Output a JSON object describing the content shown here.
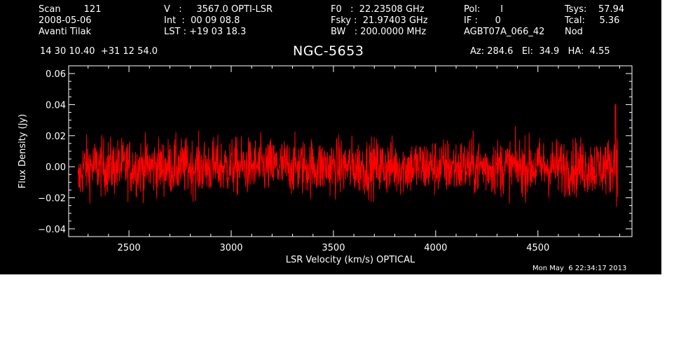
{
  "header": {
    "col1": [
      "Scan        121",
      "2008-05-06",
      "Avanti Tilak"
    ],
    "col2": [
      "V   :     3567.0 OPTI-LSR",
      "Int  :  00 09 08.8",
      "LST : +19 03 18.3"
    ],
    "col3": [
      "F0   :  22.23508 GHz",
      "Fsky :  21.97403 GHz",
      "BW   : 200.0000 MHz"
    ],
    "col4": [
      "Pol:       I",
      "IF :      0",
      "AGBT07A_066_42"
    ],
    "col5": [
      "Tsys:    57.94",
      "Tcal:     5.36",
      "Nod"
    ],
    "coords": "14 30 10.40  +31 12 54.0",
    "source": "NGC-5653",
    "azel": "Az: 284.6   El:  34.9   HA:  4.55"
  },
  "timestamp": "Mon May  6 22:34:17 2013",
  "chart_data": {
    "type": "line",
    "xlabel": "LSR Velocity (km/s) OPTICAL",
    "ylabel": "Flux Density (Jy)",
    "xlim": [
      2205,
      4960
    ],
    "ylim": [
      -0.045,
      0.065
    ],
    "xticks": [
      2500,
      3000,
      3500,
      4000,
      4500
    ],
    "yticks": [
      -0.04,
      -0.02,
      0.0,
      0.02,
      0.04,
      0.06
    ],
    "ytick_labels": [
      "−0.04",
      "−0.02",
      "0.00",
      "0.02",
      "0.04",
      "0.06"
    ],
    "series_color": "#ff0000",
    "axis_color": "#ffffff",
    "background": "#000000",
    "series": [
      {
        "x_start": 2250,
        "x_end": 4890,
        "noise_rms_jy": 0.009,
        "mean_jy": 0.0,
        "points": [
          [
            2250,
            -0.027
          ],
          [
            2255,
            -0.012
          ],
          [
            2262,
            -0.02
          ],
          [
            2270,
            0.002
          ],
          [
            2280,
            -0.008
          ],
          [
            2300,
            0.015
          ],
          [
            2350,
            0.02
          ],
          [
            2500,
            0.02
          ],
          [
            2800,
            0.016
          ],
          [
            2900,
            0.023
          ],
          [
            3000,
            0.023
          ],
          [
            3200,
            0.018
          ],
          [
            3460,
            0.025
          ],
          [
            3500,
            0.022
          ],
          [
            3700,
            0.024
          ],
          [
            3900,
            0.017
          ],
          [
            4000,
            0.02
          ],
          [
            4200,
            0.018
          ],
          [
            4500,
            0.019
          ],
          [
            4700,
            0.02
          ],
          [
            4850,
            0.022
          ],
          [
            4870,
            0.025
          ],
          [
            4880,
            0.04
          ],
          [
            4885,
            0.005
          ],
          [
            4890,
            0.03
          ]
        ]
      }
    ]
  }
}
